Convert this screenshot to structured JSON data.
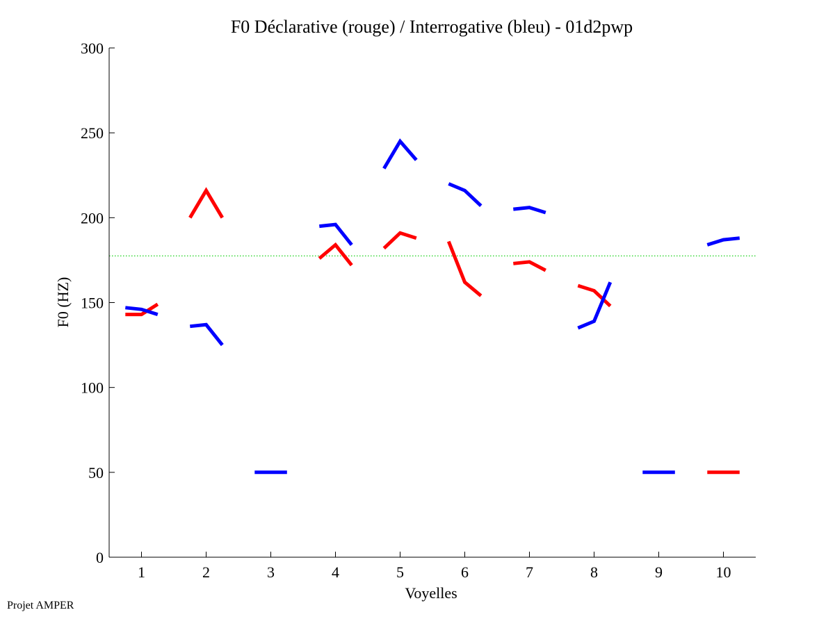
{
  "chart_data": {
    "type": "line",
    "title": "F0 Déclarative (rouge) / Interrogative (bleu) - 01d2pwp",
    "xlabel": "Voyelles",
    "ylabel": "F0 (HZ)",
    "xlim": [
      0.5,
      10.5
    ],
    "ylim": [
      0,
      300
    ],
    "xticks": [
      "1",
      "2",
      "3",
      "4",
      "5",
      "6",
      "7",
      "8",
      "9",
      "10"
    ],
    "yticks": [
      "0",
      "50",
      "100",
      "150",
      "200",
      "250",
      "300"
    ],
    "reference_line": {
      "y": 177.5,
      "color": "#00cc00",
      "style": "dotted"
    },
    "series": [
      {
        "color": "#ff0000",
        "segments": [
          {
            "vowel": 1,
            "x": [
              0.75,
              1.0,
              1.25
            ],
            "y": [
              143,
              143,
              149
            ]
          },
          {
            "vowel": 2,
            "x": [
              1.75,
              2.0,
              2.25
            ],
            "y": [
              200,
              216,
              200
            ]
          },
          {
            "vowel": 4,
            "x": [
              3.75,
              4.0,
              4.25
            ],
            "y": [
              176,
              184,
              172
            ]
          },
          {
            "vowel": 5,
            "x": [
              4.75,
              5.0,
              5.25
            ],
            "y": [
              182,
              191,
              188
            ]
          },
          {
            "vowel": 6,
            "x": [
              5.75,
              6.0,
              6.25
            ],
            "y": [
              186,
              162,
              154
            ]
          },
          {
            "vowel": 7,
            "x": [
              6.75,
              7.0,
              7.25
            ],
            "y": [
              173,
              174,
              169
            ]
          },
          {
            "vowel": 8,
            "x": [
              7.75,
              8.0,
              8.25
            ],
            "y": [
              160,
              157,
              148
            ]
          },
          {
            "vowel": 10,
            "x": [
              9.75,
              10.0,
              10.25
            ],
            "y": [
              50,
              50,
              50
            ]
          }
        ]
      },
      {
        "color": "#0000ff",
        "segments": [
          {
            "vowel": 1,
            "x": [
              0.75,
              1.0,
              1.25
            ],
            "y": [
              147,
              146,
              143
            ]
          },
          {
            "vowel": 2,
            "x": [
              1.75,
              2.0,
              2.25
            ],
            "y": [
              136,
              137,
              125
            ]
          },
          {
            "vowel": 3,
            "x": [
              2.75,
              3.0,
              3.25
            ],
            "y": [
              50,
              50,
              50
            ]
          },
          {
            "vowel": 4,
            "x": [
              3.75,
              4.0,
              4.25
            ],
            "y": [
              195,
              196,
              184
            ]
          },
          {
            "vowel": 5,
            "x": [
              4.75,
              5.0,
              5.25
            ],
            "y": [
              229,
              245,
              234
            ]
          },
          {
            "vowel": 6,
            "x": [
              5.75,
              6.0,
              6.25
            ],
            "y": [
              220,
              216,
              207
            ]
          },
          {
            "vowel": 7,
            "x": [
              6.75,
              7.0,
              7.25
            ],
            "y": [
              205,
              206,
              203
            ]
          },
          {
            "vowel": 8,
            "x": [
              7.75,
              8.0,
              8.25
            ],
            "y": [
              135,
              139,
              162
            ]
          },
          {
            "vowel": 9,
            "x": [
              8.75,
              9.0,
              9.25
            ],
            "y": [
              50,
              50,
              50
            ]
          },
          {
            "vowel": 10,
            "x": [
              9.75,
              10.0,
              10.25
            ],
            "y": [
              184,
              187,
              188
            ]
          }
        ]
      }
    ]
  },
  "footer": {
    "text": "Projet AMPER"
  }
}
